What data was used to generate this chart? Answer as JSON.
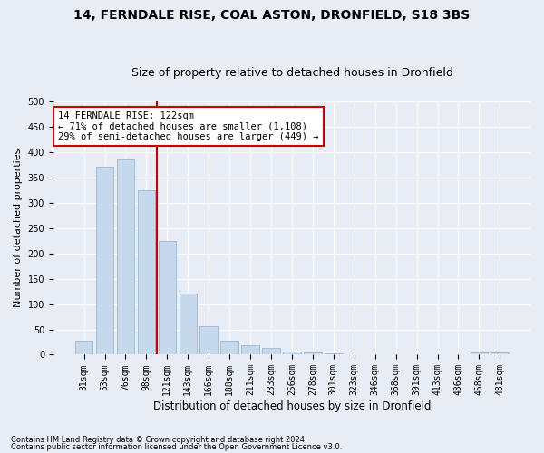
{
  "title1": "14, FERNDALE RISE, COAL ASTON, DRONFIELD, S18 3BS",
  "title2": "Size of property relative to detached houses in Dronfield",
  "xlabel": "Distribution of detached houses by size in Dronfield",
  "ylabel": "Number of detached properties",
  "categories": [
    "31sqm",
    "53sqm",
    "76sqm",
    "98sqm",
    "121sqm",
    "143sqm",
    "166sqm",
    "188sqm",
    "211sqm",
    "233sqm",
    "256sqm",
    "278sqm",
    "301sqm",
    "323sqm",
    "346sqm",
    "368sqm",
    "391sqm",
    "413sqm",
    "436sqm",
    "458sqm",
    "481sqm"
  ],
  "values": [
    27,
    370,
    385,
    325,
    225,
    120,
    57,
    27,
    19,
    14,
    6,
    5,
    2,
    1,
    1,
    1,
    0,
    0,
    0,
    4,
    4
  ],
  "bar_color": "#c6d9ec",
  "bar_edge_color": "#9ab8d0",
  "vline_x": 3.5,
  "vline_color": "#cc0000",
  "annotation_line1": "14 FERNDALE RISE: 122sqm",
  "annotation_line2": "← 71% of detached houses are smaller (1,108)",
  "annotation_line3": "29% of semi-detached houses are larger (449) →",
  "annotation_box_color": "#ffffff",
  "annotation_box_edge": "#cc0000",
  "footer1": "Contains HM Land Registry data © Crown copyright and database right 2024.",
  "footer2": "Contains public sector information licensed under the Open Government Licence v3.0.",
  "ylim": [
    0,
    500
  ],
  "yticks": [
    0,
    50,
    100,
    150,
    200,
    250,
    300,
    350,
    400,
    450,
    500
  ],
  "bg_color": "#e8edf5",
  "plot_bg_color": "#e8edf5",
  "title1_fontsize": 10,
  "title2_fontsize": 9,
  "grid_color": "#ffffff",
  "tick_fontsize": 7,
  "ylabel_fontsize": 8,
  "xlabel_fontsize": 8.5
}
